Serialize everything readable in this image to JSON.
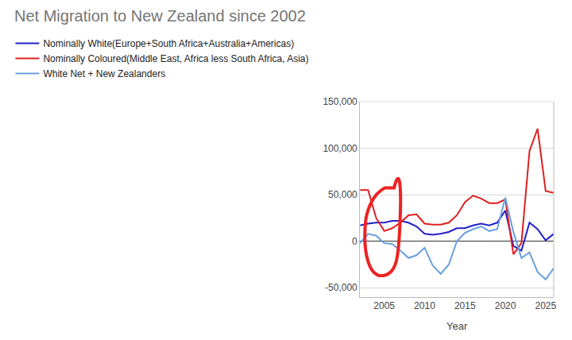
{
  "chart_data": {
    "type": "line",
    "title": "Net Migration to New Zealand since 2002",
    "x_label": "Year",
    "x": [
      2002,
      2003,
      2004,
      2005,
      2006,
      2007,
      2008,
      2009,
      2010,
      2011,
      2012,
      2013,
      2014,
      2015,
      2016,
      2017,
      2018,
      2019,
      2020,
      2021,
      2022,
      2023,
      2024,
      2025,
      2026
    ],
    "series": [
      {
        "name": "Nominally White(Europe+South Africa+Australia+Americas)",
        "color": "#2020c8",
        "values": [
          17000,
          19000,
          20000,
          20000,
          22000,
          22000,
          20000,
          16000,
          8000,
          7000,
          8000,
          10000,
          14000,
          14000,
          17000,
          19000,
          17000,
          20000,
          33000,
          -5000,
          -10000,
          20000,
          13000,
          1000,
          8000
        ]
      },
      {
        "name": "Nominally Coloured(Middle East, Africa less South Africa, Asia)",
        "color": "#dd2020",
        "values": [
          55000,
          55000,
          25000,
          11000,
          14000,
          20000,
          28000,
          29000,
          19000,
          18000,
          18000,
          20000,
          28000,
          42000,
          49000,
          46000,
          41000,
          41000,
          45000,
          -14000,
          -2000,
          97000,
          121000,
          54000,
          52000
        ]
      },
      {
        "name": "White Net + New Zealanders",
        "color": "#6a9fe0",
        "values": [
          -2000,
          8000,
          6000,
          -2000,
          -3000,
          -10000,
          -18000,
          -15000,
          -7000,
          -26000,
          -35000,
          -25000,
          0,
          9000,
          13000,
          16000,
          11000,
          13000,
          47000,
          10000,
          -18000,
          -12000,
          -33000,
          -41000,
          -29000
        ]
      }
    ],
    "xlim": [
      2002,
      2026
    ],
    "xticks": [
      2005,
      2010,
      2015,
      2020,
      2025
    ],
    "ylim": [
      -60000,
      150000
    ],
    "yticks": [
      {
        "value": -50000,
        "label": "-50,000"
      },
      0,
      {
        "value": 50000,
        "label": "50,000"
      },
      {
        "value": 100000,
        "label": "100,000"
      },
      {
        "value": 150000,
        "label": "150,000"
      }
    ],
    "grid": true,
    "legend": "top-left"
  }
}
